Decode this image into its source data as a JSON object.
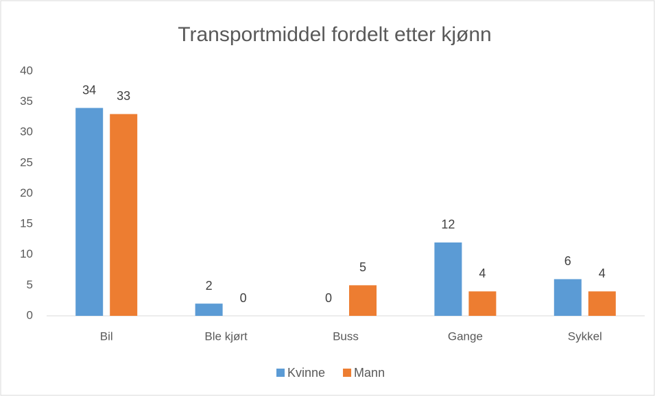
{
  "chart_data": {
    "type": "bar",
    "title": "Transportmiddel fordelt etter kjønn",
    "categories": [
      "Bil",
      "Ble kjørt",
      "Buss",
      "Gange",
      "Sykkel"
    ],
    "series": [
      {
        "name": "Kvinne",
        "color": "#5b9bd5",
        "values": [
          34,
          2,
          0,
          12,
          6
        ]
      },
      {
        "name": "Mann",
        "color": "#ed7d31",
        "values": [
          33,
          0,
          5,
          4,
          4
        ]
      }
    ],
    "ylim": [
      0,
      40
    ],
    "yticks": [
      0,
      5,
      10,
      15,
      20,
      25,
      30,
      35,
      40
    ],
    "grid": false,
    "legend": "bottom"
  }
}
